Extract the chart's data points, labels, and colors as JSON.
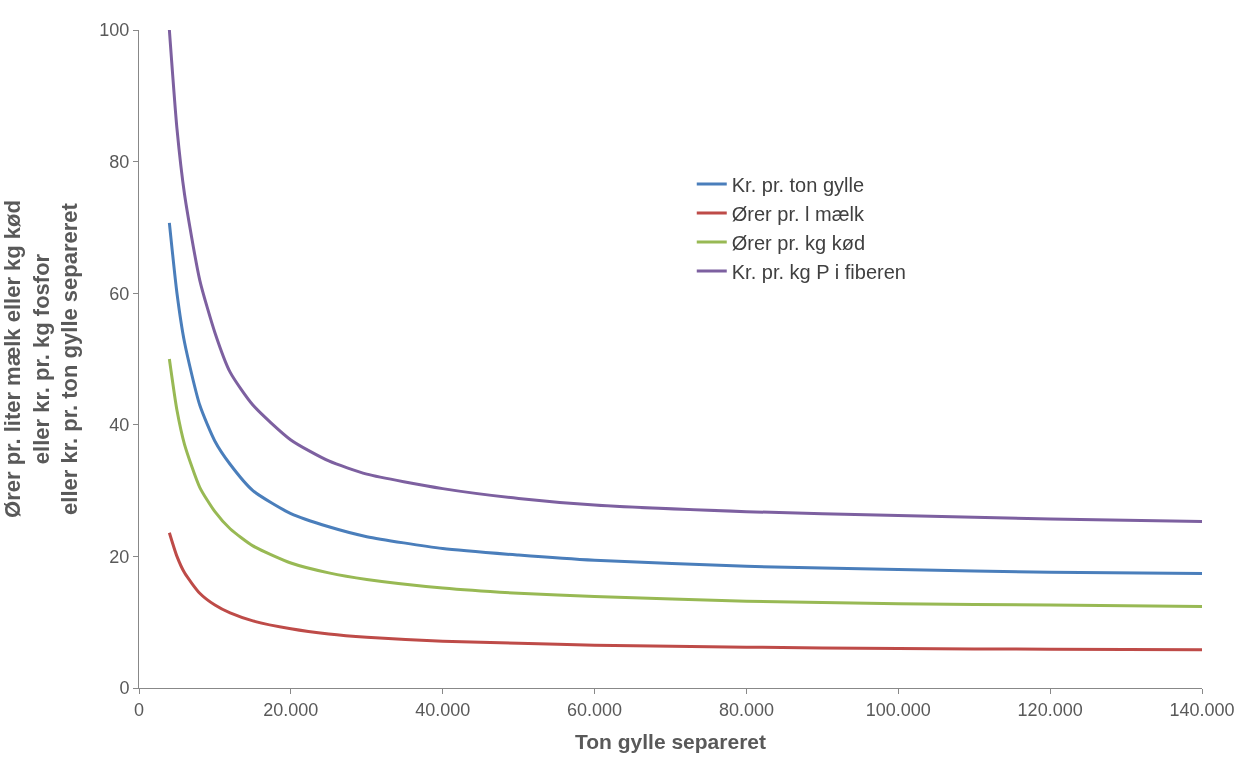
{
  "chart_data": {
    "type": "line",
    "xlabel": "Ton gylle separeret",
    "ylabel": "Ører pr. liter mælk eller kg kød\neller kr. pr. kg fosfor\neller kr. pr. ton gylle separeret",
    "x": [
      4000,
      5000,
      6000,
      8000,
      10000,
      12000,
      15000,
      20000,
      25000,
      30000,
      40000,
      50000,
      60000,
      80000,
      100000,
      120000,
      140000
    ],
    "series": [
      {
        "name": "Kr. pr. ton gylle",
        "color": "#4a7ebb",
        "values": [
          70.7,
          60,
          52.5,
          43,
          37.5,
          34,
          30,
          26.5,
          24.5,
          23,
          21.2,
          20.2,
          19.4,
          18.5,
          18,
          17.6,
          17.4
        ]
      },
      {
        "name": "Ører pr. l mælk",
        "color": "#be4b48",
        "values": [
          23.6,
          20,
          17.5,
          14.4,
          12.6,
          11.4,
          10.2,
          9,
          8.2,
          7.7,
          7.1,
          6.8,
          6.5,
          6.2,
          6,
          5.9,
          5.8
        ]
      },
      {
        "name": "Ører pr. kg kød",
        "color": "#98b954",
        "values": [
          50,
          42.2,
          37,
          30.5,
          26.8,
          24.2,
          21.6,
          19,
          17.5,
          16.5,
          15.2,
          14.4,
          13.9,
          13.2,
          12.8,
          12.6,
          12.4
        ]
      },
      {
        "name": "Kr. pr. kg P i fiberen",
        "color": "#7d60a0",
        "values": [
          100,
          85,
          75,
          62,
          54,
          48,
          43,
          37.7,
          34.5,
          32.5,
          30.3,
          28.8,
          27.8,
          26.8,
          26.2,
          25.7,
          25.3
        ]
      }
    ],
    "xlim": [
      0,
      140000
    ],
    "ylim": [
      0,
      100
    ],
    "xticks": [
      0,
      {
        "value": 20000,
        "label": "20.000"
      },
      {
        "value": 40000,
        "label": "40.000"
      },
      {
        "value": 60000,
        "label": "60.000"
      },
      {
        "value": 80000,
        "label": "80.000"
      },
      {
        "value": 100000,
        "label": "100.000"
      },
      {
        "value": 120000,
        "label": "120.000"
      },
      {
        "value": 140000,
        "label": "140.000"
      }
    ],
    "yticks": [
      0,
      20,
      40,
      60,
      80,
      100
    ],
    "legend": "center",
    "marker": "none",
    "line_style": "solid"
  }
}
